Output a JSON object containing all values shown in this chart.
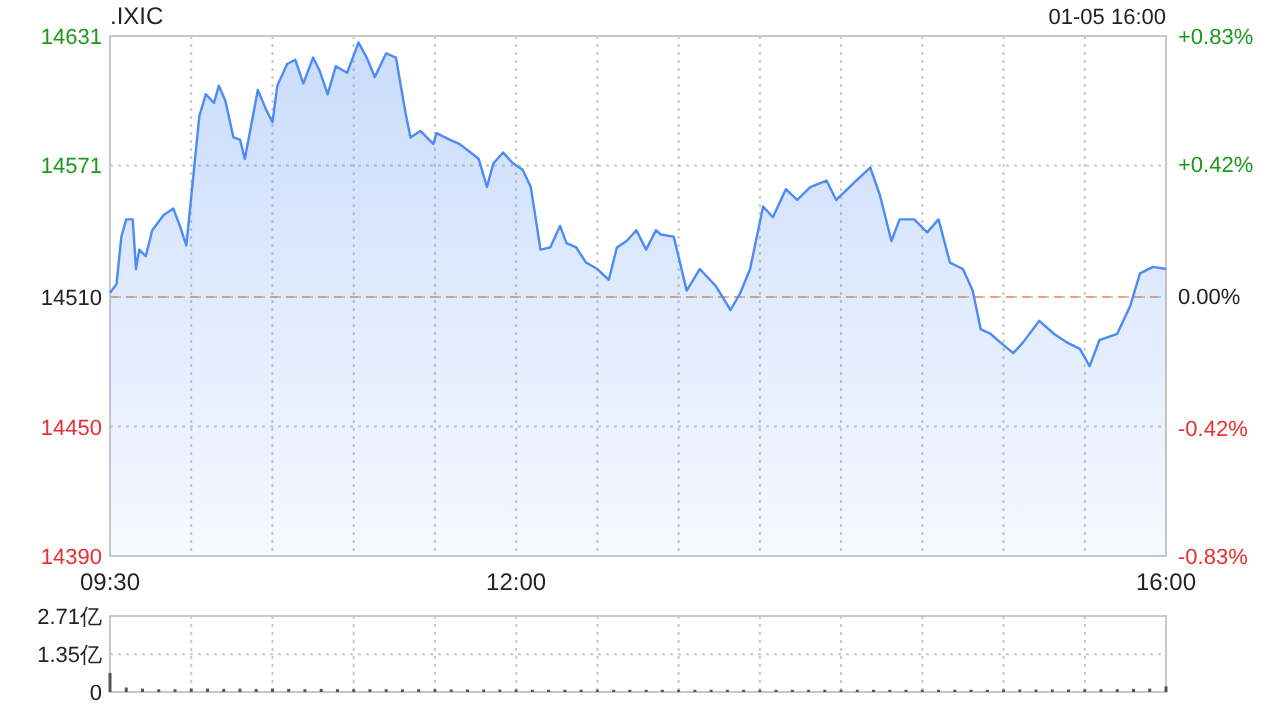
{
  "chart_data": [
    {
      "type": "area",
      "title": ".IXIC",
      "annotations": [
        "01-05 16:00"
      ],
      "color": "#4c8bf5",
      "x": [
        9.5,
        9.54,
        9.57,
        9.6,
        9.64,
        9.66,
        9.68,
        9.72,
        9.76,
        9.79,
        9.83,
        9.89,
        9.93,
        9.97,
        10.01,
        10.05,
        10.09,
        10.14,
        10.17,
        10.21,
        10.26,
        10.3,
        10.33,
        10.36,
        10.41,
        10.46,
        10.5,
        10.53,
        10.59,
        10.64,
        10.69,
        10.75,
        10.79,
        10.84,
        10.89,
        10.96,
        11.03,
        11.08,
        11.13,
        11.2,
        11.26,
        11.32,
        11.35,
        11.41,
        11.49,
        11.51,
        11.59,
        11.65,
        11.72,
        11.77,
        11.82,
        11.86,
        11.92,
        11.98,
        12.04,
        12.09,
        12.15,
        12.21,
        12.27,
        12.31,
        12.37,
        12.43,
        12.5,
        12.57,
        12.62,
        12.68,
        12.74,
        12.8,
        12.86,
        12.89,
        12.97,
        13.05,
        13.13,
        13.23,
        13.32,
        13.38,
        13.44,
        13.52,
        13.58,
        13.66,
        13.73,
        13.81,
        13.91,
        13.97,
        14.08,
        14.18,
        14.24,
        14.31,
        14.36,
        14.45,
        14.53,
        14.6,
        14.67,
        14.75,
        14.81,
        14.86,
        14.92,
        14.98,
        15.06,
        15.12,
        15.22,
        15.31,
        15.39,
        15.47,
        15.53,
        15.59,
        15.7,
        15.78,
        15.84,
        15.92,
        16.0
      ],
      "values": [
        14512,
        14516,
        14538,
        14546,
        14546,
        14523,
        14532,
        14529,
        14541,
        14544,
        14548,
        14551,
        14543,
        14534,
        14564,
        14594,
        14604,
        14600,
        14608,
        14601,
        14584,
        14583,
        14574,
        14586,
        14606,
        14597,
        14591,
        14608,
        14618,
        14620,
        14609,
        14621,
        14615,
        14604,
        14617,
        14614,
        14628,
        14621,
        14612,
        14623,
        14621,
        14595,
        14584,
        14587,
        14581,
        14586,
        14583,
        14581,
        14577,
        14574,
        14561,
        14572,
        14577,
        14572,
        14569,
        14561,
        14532,
        14533,
        14543,
        14535,
        14533,
        14526,
        14523,
        14518,
        14533,
        14536,
        14541,
        14532,
        14541,
        14539,
        14538,
        14513,
        14523,
        14515,
        14504,
        14512,
        14523,
        14552,
        14547,
        14560,
        14555,
        14561,
        14564,
        14555,
        14563,
        14570,
        14557,
        14536,
        14546,
        14546,
        14540,
        14546,
        14526,
        14523,
        14513,
        14495,
        14493,
        14489,
        14484,
        14489,
        14499,
        14493,
        14489,
        14486,
        14478,
        14490,
        14493,
        14506,
        14521,
        14524,
        14523
      ],
      "xlim": [
        9.5,
        16
      ],
      "xticks": [
        {
          "value": 9.5,
          "label": "09:30"
        },
        {
          "value": 10,
          "label": null
        },
        {
          "value": 10.5,
          "label": null
        },
        {
          "value": 11,
          "label": null
        },
        {
          "value": 11.5,
          "label": null
        },
        {
          "value": 12,
          "label": "12:00"
        },
        {
          "value": 12.5,
          "label": null
        },
        {
          "value": 13,
          "label": null
        },
        {
          "value": 13.5,
          "label": null
        },
        {
          "value": 14,
          "label": null
        },
        {
          "value": 14.5,
          "label": null
        },
        {
          "value": 15,
          "label": null
        },
        {
          "value": 15.5,
          "label": null
        },
        {
          "value": 16,
          "label": "16:00"
        }
      ],
      "ylim": [
        14390,
        14631
      ],
      "yticks": [
        14390,
        14450,
        14510,
        14571,
        14631
      ],
      "y2lim": [
        -0.83,
        0.83
      ],
      "y2ticks": [
        {
          "value": -0.83,
          "label": "-0.83%"
        },
        {
          "value": -0.42,
          "label": "-0.42%"
        },
        {
          "value": 0,
          "label": "0.00%"
        },
        {
          "value": 0.42,
          "label": "+0.42%"
        },
        {
          "value": 0.83,
          "label": "+0.83%"
        }
      ],
      "ref_lines": [
        {
          "axis": "y",
          "value": 14510,
          "color": "#f0a070",
          "line_style": "dashed"
        }
      ],
      "grid": true
    },
    {
      "type": "bar",
      "color": "#555555",
      "tick_labels": "y",
      "grid": true,
      "x": [
        9.5,
        9.6,
        9.7,
        9.8,
        9.9,
        10.0,
        10.1,
        10.2,
        10.3,
        10.4,
        10.5,
        10.6,
        10.7,
        10.8,
        10.9,
        11.0,
        11.1,
        11.2,
        11.3,
        11.4,
        11.5,
        11.6,
        11.7,
        11.8,
        11.9,
        12.0,
        12.1,
        12.2,
        12.3,
        12.4,
        12.5,
        12.6,
        12.7,
        12.8,
        12.9,
        13.0,
        13.1,
        13.2,
        13.3,
        13.4,
        13.5,
        13.6,
        13.7,
        13.8,
        13.9,
        14.0,
        14.1,
        14.2,
        14.3,
        14.4,
        14.5,
        14.6,
        14.7,
        14.8,
        14.9,
        15.0,
        15.1,
        15.2,
        15.3,
        15.4,
        15.5,
        15.6,
        15.7,
        15.8,
        15.9,
        16.0
      ],
      "values": [
        0.68,
        0.16,
        0.12,
        0.1,
        0.1,
        0.12,
        0.12,
        0.11,
        0.12,
        0.11,
        0.12,
        0.11,
        0.1,
        0.11,
        0.1,
        0.1,
        0.1,
        0.1,
        0.09,
        0.1,
        0.1,
        0.09,
        0.09,
        0.09,
        0.09,
        0.09,
        0.08,
        0.08,
        0.08,
        0.08,
        0.08,
        0.08,
        0.08,
        0.08,
        0.08,
        0.08,
        0.08,
        0.08,
        0.08,
        0.08,
        0.08,
        0.08,
        0.08,
        0.08,
        0.08,
        0.08,
        0.08,
        0.08,
        0.08,
        0.08,
        0.08,
        0.08,
        0.08,
        0.08,
        0.08,
        0.09,
        0.09,
        0.09,
        0.09,
        0.09,
        0.09,
        0.1,
        0.1,
        0.11,
        0.12,
        0.2
      ],
      "xlim": [
        9.5,
        16
      ],
      "xticks": [
        9.5,
        10,
        10.5,
        11,
        11.5,
        12,
        12.5,
        13,
        13.5,
        14,
        14.5,
        15,
        15.5,
        16
      ],
      "ylim": [
        0,
        2.71
      ],
      "yticks": [
        0,
        {
          "value": 1.35,
          "label": "1.35亿"
        },
        {
          "value": 2.71,
          "label": "2.71亿"
        }
      ]
    }
  ]
}
